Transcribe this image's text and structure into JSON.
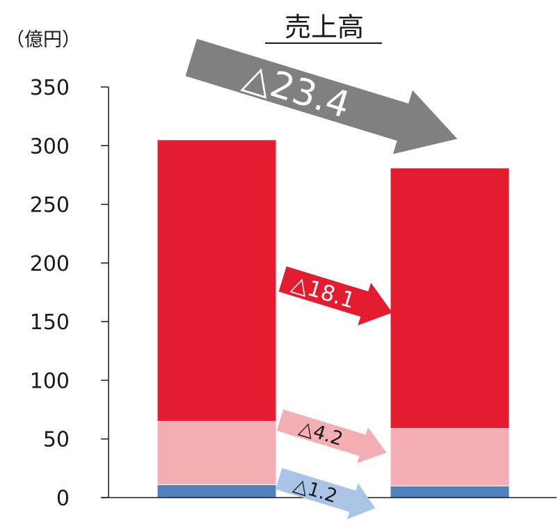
{
  "chart_data": {
    "type": "bar",
    "title": "売上高",
    "ylabel": "（億円）",
    "ylim": [
      0,
      350
    ],
    "yticks": [
      0,
      50,
      100,
      150,
      200,
      250,
      300,
      350
    ],
    "categories": [
      "",
      ""
    ],
    "series": [
      {
        "values": [
          11,
          10
        ],
        "color": "#4f81bd"
      },
      {
        "values": [
          54,
          49
        ],
        "color": "#f4afb4"
      },
      {
        "values": [
          240,
          222
        ],
        "color": "#e31c2f"
      }
    ],
    "totals": [
      305,
      282
    ],
    "annotations": [
      {
        "text": "△23.4",
        "color": "#808080",
        "text_color": "#ffffff"
      },
      {
        "text": "△18.1",
        "color": "#e31c2f",
        "text_color": "#ffffff"
      },
      {
        "text": "△4.2",
        "color": "#f4afb4",
        "text_color": "#1a1a1a"
      },
      {
        "text": "△1.2",
        "color": "#a9c4e4",
        "text_color": "#1a1a1a"
      }
    ]
  }
}
